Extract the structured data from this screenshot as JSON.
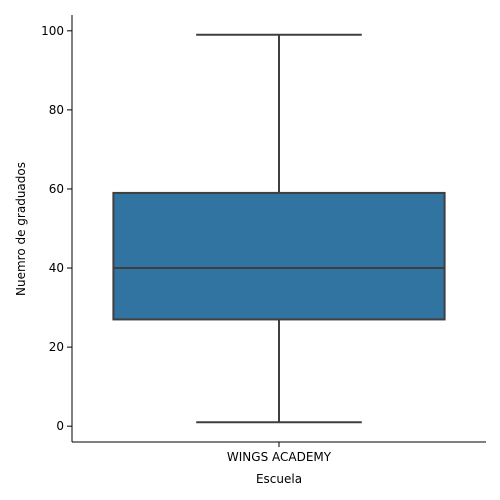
{
  "chart_data": {
    "type": "box",
    "title": "",
    "xlabel": "Escuela",
    "ylabel": "Nuemro de graduados",
    "categories": [
      "WINGS ACADEMY"
    ],
    "boxes": [
      {
        "category": "WINGS ACADEMY",
        "min": 1,
        "q1": 27,
        "median": 40,
        "q3": 59,
        "max": 99
      }
    ],
    "ylim": [
      -4,
      104
    ],
    "yticks": [
      0,
      20,
      40,
      60,
      80,
      100
    ],
    "grid": false,
    "box_color": "#3274a1",
    "line_color": "#3f3f3f"
  }
}
